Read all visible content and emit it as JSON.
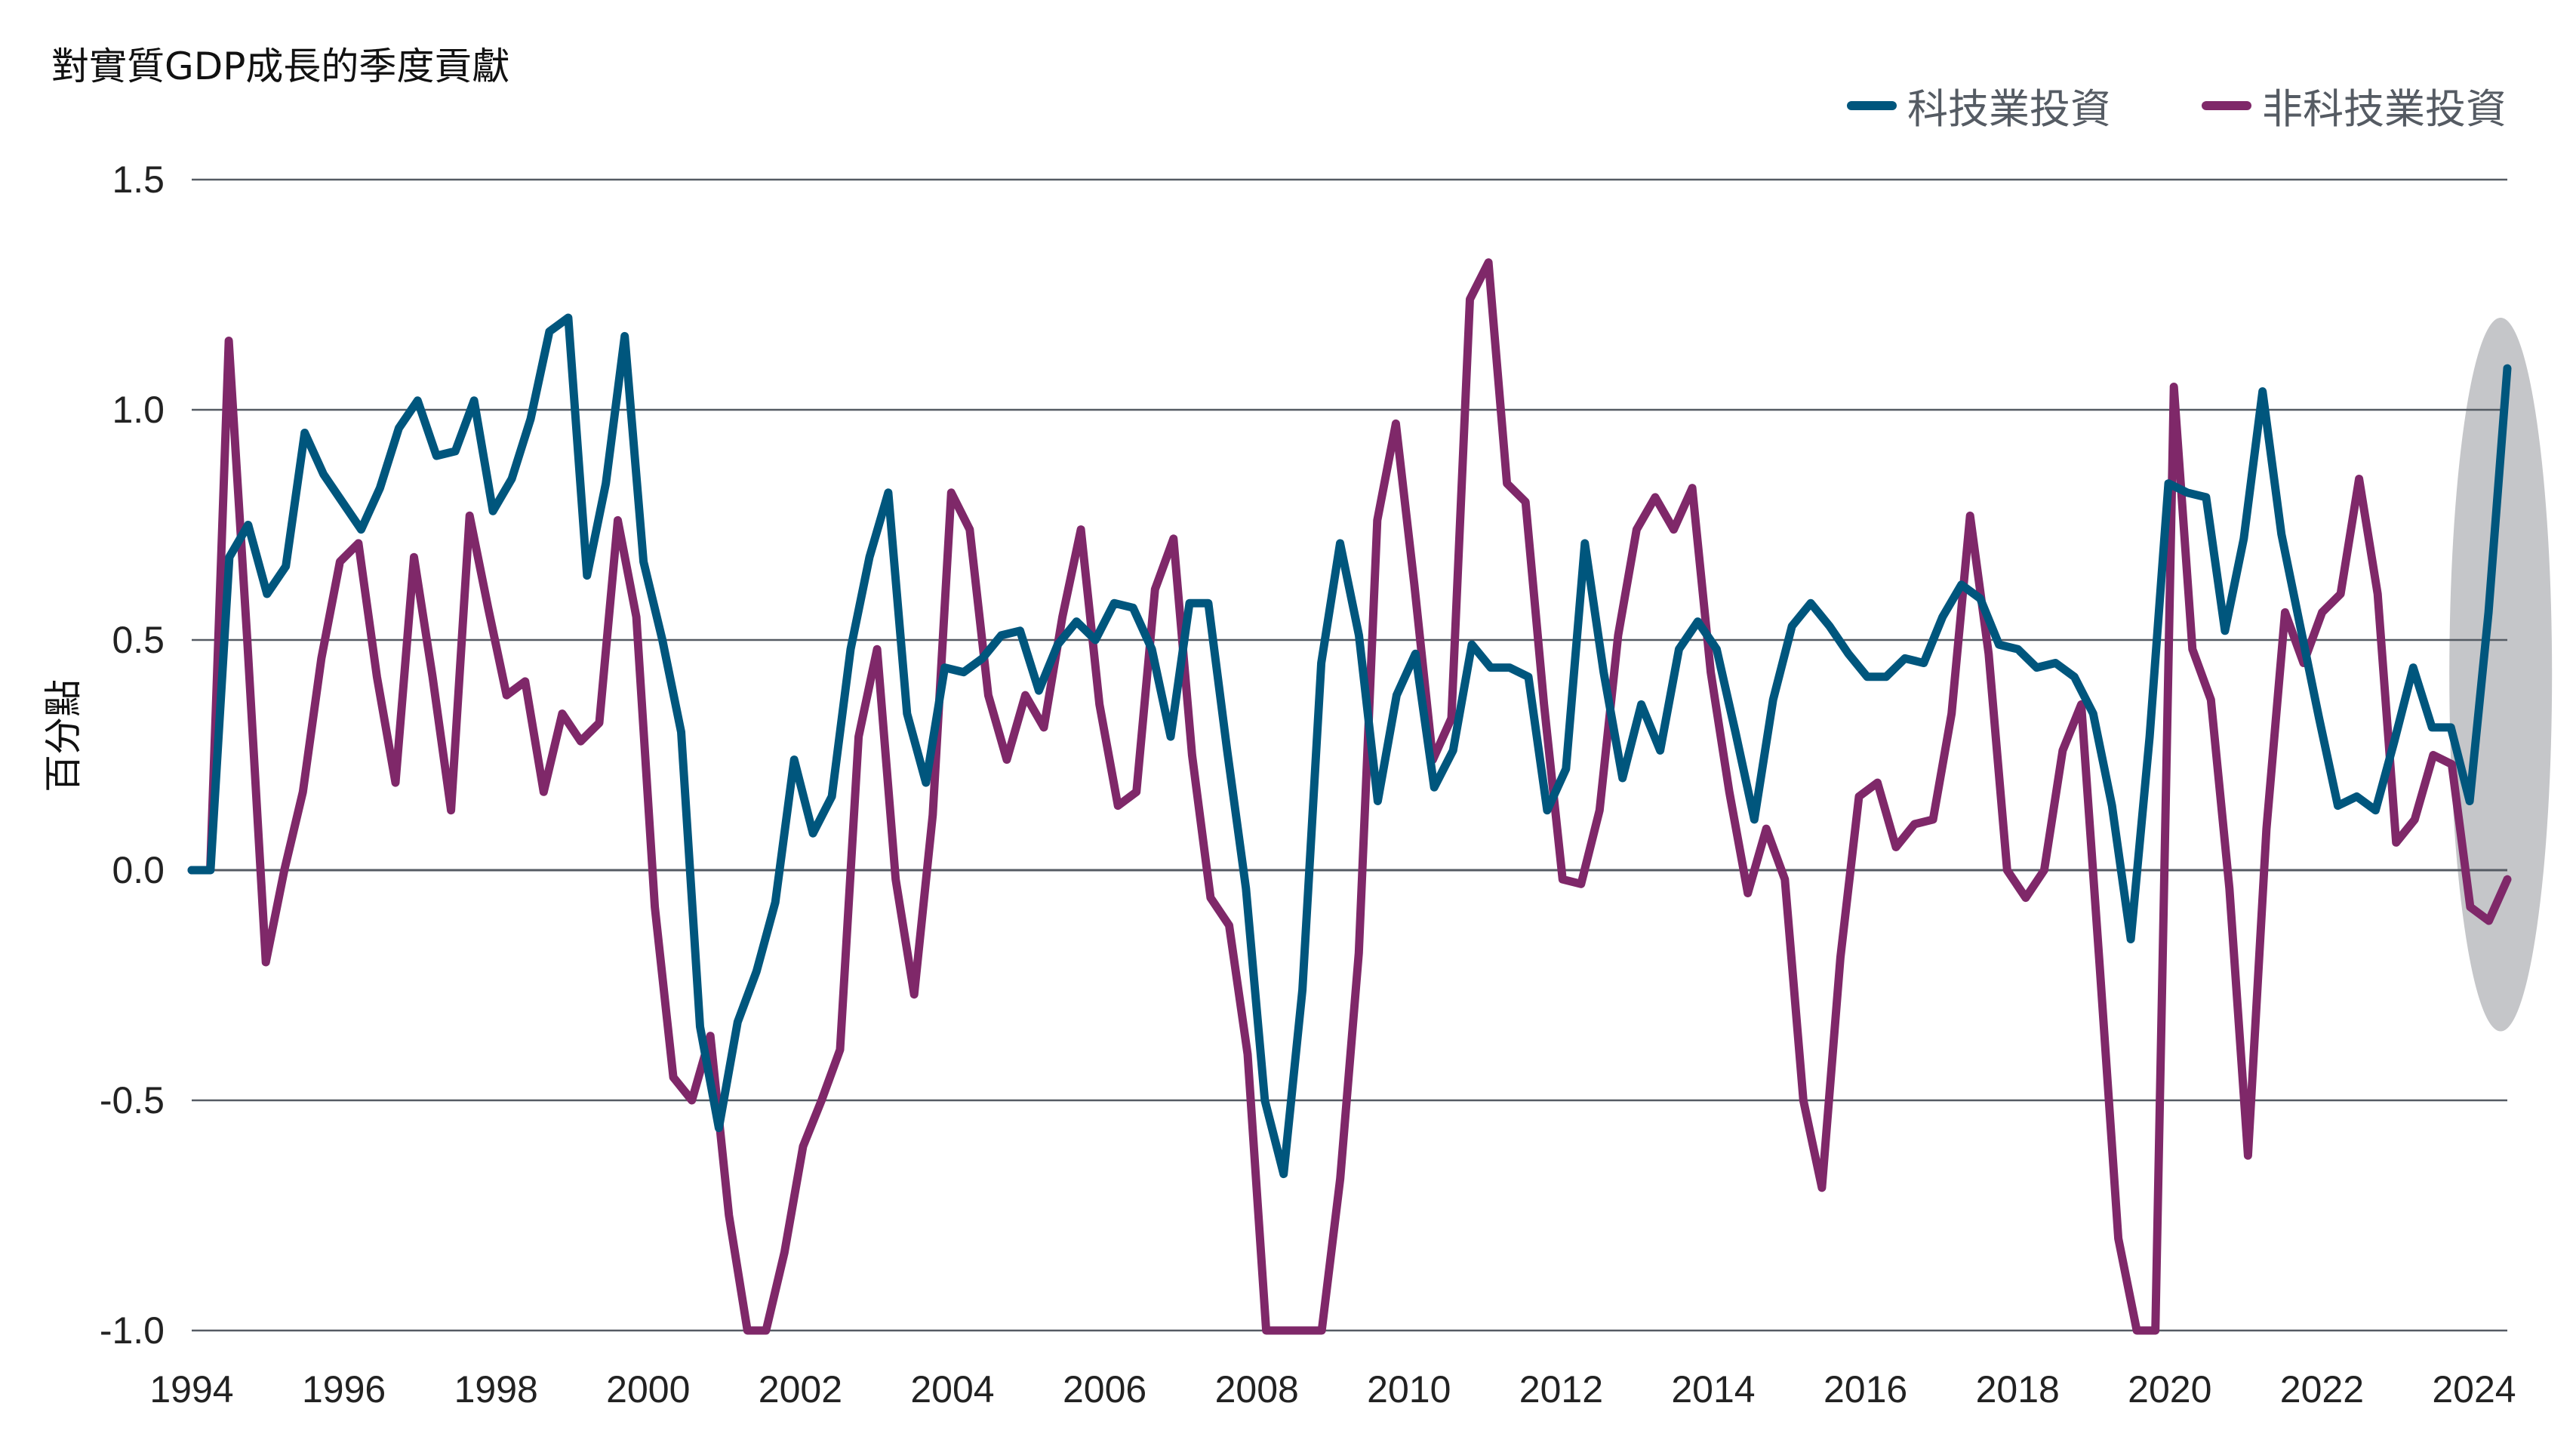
{
  "chart_data": {
    "type": "line",
    "title": "對實質GDP成長的季度貢獻",
    "xlabel": "",
    "ylabel": "百分點",
    "ylim": [
      -1.0,
      1.5
    ],
    "yticks": [
      "1.5",
      "1.0",
      "0.5",
      "0.0",
      "-0.5",
      "-1.0"
    ],
    "xticks": [
      "1994",
      "1996",
      "1998",
      "2000",
      "2002",
      "2004",
      "2006",
      "2008",
      "2010",
      "2012",
      "2014",
      "2016",
      "2018",
      "2020",
      "2022",
      "2024"
    ],
    "grid": true,
    "legend_position": "top-right",
    "highlight": {
      "shape": "ellipse",
      "x_range": [
        2023.75,
        2024.75
      ],
      "y_range": [
        -0.35,
        1.2
      ],
      "color": "#c5c6c9"
    },
    "series": [
      {
        "name": "科技業投資",
        "color": "#00567d",
        "values": [
          0.0,
          0.0,
          0.68,
          0.75,
          0.6,
          0.66,
          0.95,
          0.86,
          0.8,
          0.74,
          0.83,
          0.96,
          1.02,
          0.9,
          0.91,
          1.02,
          0.78,
          0.85,
          0.98,
          1.17,
          1.2,
          0.64,
          0.84,
          1.16,
          0.67,
          0.5,
          0.3,
          -0.34,
          -0.56,
          -0.33,
          -0.22,
          -0.07,
          0.24,
          0.08,
          0.16,
          0.48,
          0.68,
          0.82,
          0.34,
          0.19,
          0.44,
          0.43,
          0.46,
          0.51,
          0.52,
          0.39,
          0.49,
          0.54,
          0.5,
          0.58,
          0.57,
          0.48,
          0.29,
          0.58,
          0.58,
          0.26,
          -0.04,
          -0.5,
          -0.66,
          -0.26,
          0.45,
          0.71,
          0.51,
          0.15,
          0.38,
          0.47,
          0.18,
          0.26,
          0.49,
          0.44,
          0.44,
          0.42,
          0.13,
          0.22,
          0.71,
          0.43,
          0.2,
          0.36,
          0.26,
          0.48,
          0.54,
          0.48,
          0.3,
          0.11,
          0.37,
          0.53,
          0.58,
          0.53,
          0.47,
          0.42,
          0.42,
          0.46,
          0.45,
          0.55,
          0.62,
          0.59,
          0.49,
          0.48,
          0.44,
          0.45,
          0.42,
          0.34,
          0.14,
          -0.15,
          0.29,
          0.84,
          0.82,
          0.81,
          0.52,
          0.72,
          1.04,
          0.73,
          0.53,
          0.33,
          0.14,
          0.16,
          0.13,
          0.28,
          0.44,
          0.31,
          0.31,
          0.15,
          0.56,
          1.09
        ]
      },
      {
        "name": "非科技業投資",
        "color": "#7f2869",
        "values": [
          0.0,
          0.0,
          1.15,
          0.5,
          -0.2,
          0.0,
          0.17,
          0.46,
          0.67,
          0.71,
          0.42,
          0.19,
          0.68,
          0.42,
          0.13,
          0.77,
          0.57,
          0.38,
          0.41,
          0.17,
          0.34,
          0.28,
          0.32,
          0.76,
          0.55,
          -0.08,
          -0.45,
          -0.5,
          -0.36,
          -0.75,
          -1.0,
          -1.0,
          -0.83,
          -0.6,
          -0.5,
          -0.39,
          0.29,
          0.48,
          -0.02,
          -0.27,
          0.12,
          0.82,
          0.74,
          0.38,
          0.24,
          0.38,
          0.31,
          0.55,
          0.74,
          0.36,
          0.14,
          0.17,
          0.61,
          0.72,
          0.25,
          -0.06,
          -0.12,
          -0.4,
          -1.0,
          -1.0,
          -1.0,
          -1.0,
          -0.67,
          -0.18,
          0.76,
          0.97,
          0.62,
          0.24,
          0.33,
          1.24,
          1.32,
          0.84,
          0.8,
          0.36,
          -0.02,
          -0.03,
          0.13,
          0.51,
          0.74,
          0.81,
          0.74,
          0.83,
          0.43,
          0.17,
          -0.05,
          0.09,
          -0.02,
          -0.5,
          -0.69,
          -0.19,
          0.16,
          0.19,
          0.05,
          0.1,
          0.11,
          0.34,
          0.77,
          0.47,
          0.0,
          -0.06,
          0.0,
          0.26,
          0.36,
          -0.21,
          -0.8,
          -1.0,
          -1.0,
          1.05,
          0.48,
          0.37,
          -0.04,
          -0.62,
          0.09,
          0.56,
          0.45,
          0.56,
          0.6,
          0.85,
          0.6,
          0.06,
          0.11,
          0.25,
          0.23,
          -0.08,
          -0.11,
          -0.02
        ]
      }
    ],
    "x_start": 1994.0,
    "x_step": 0.25
  },
  "header": {
    "title": "對實質GDP成長的季度貢獻"
  },
  "legend": {
    "items": [
      {
        "label": "科技業投資",
        "color": "#00567d"
      },
      {
        "label": "非科技業投資",
        "color": "#7f2869"
      }
    ]
  },
  "axis": {
    "ylabel": "百分點"
  }
}
